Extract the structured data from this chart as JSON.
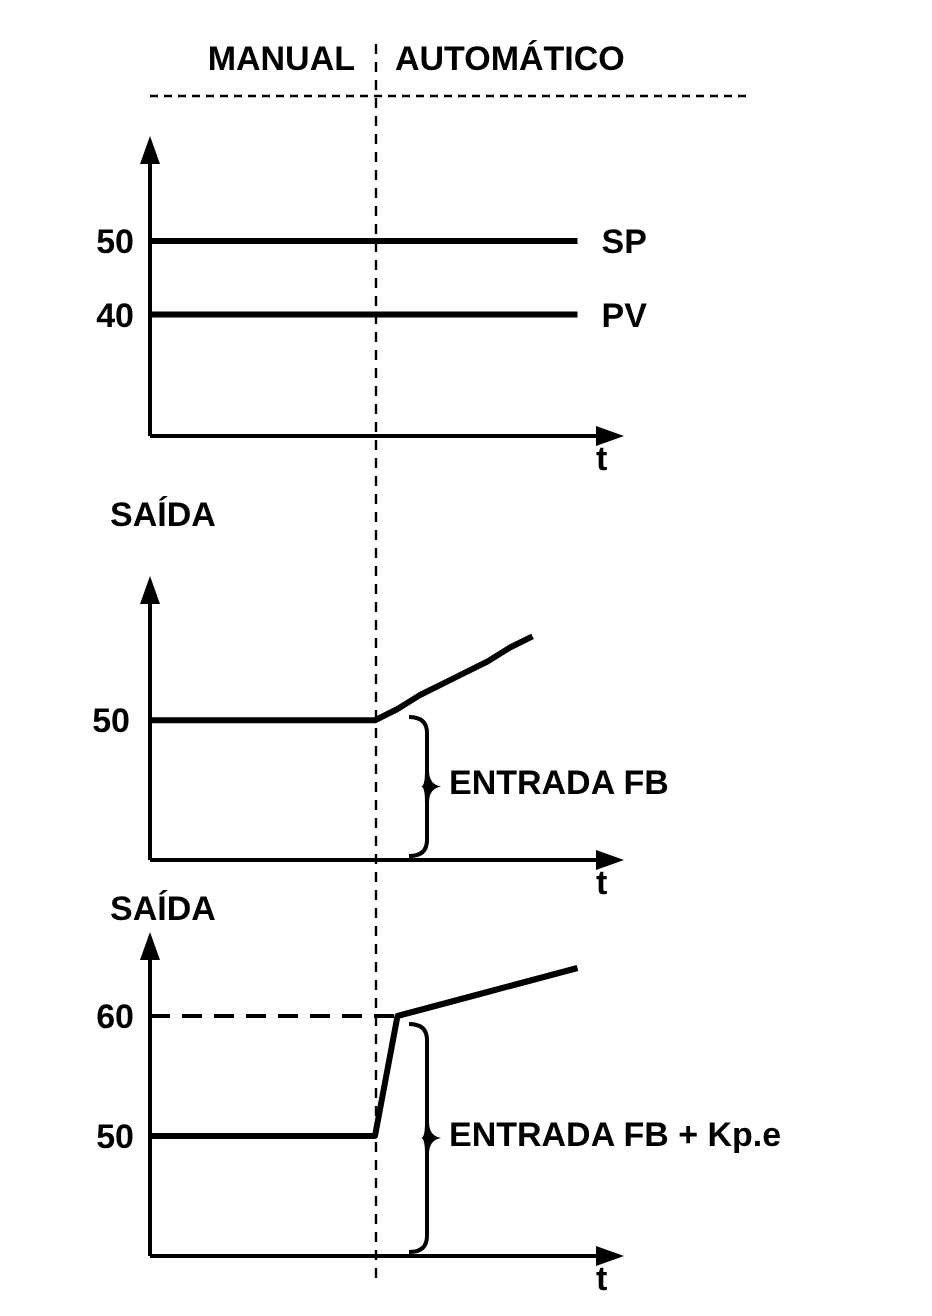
{
  "chart_data": [
    {
      "type": "line",
      "annotations": [
        "MANUAL",
        "AUTOMÁTICO"
      ],
      "xlabel": "t",
      "categories": [
        null,
        null,
        null,
        null,
        null,
        null,
        null,
        null,
        null,
        null,
        null,
        null,
        null,
        null,
        null,
        null,
        null,
        null,
        null,
        null,
        null
      ],
      "ylim": [
        23.5,
        61
      ],
      "yticks": [
        40,
        50
      ],
      "tick_labels": "y",
      "marker": "none",
      "line_style": "solid",
      "series": [
        {
          "name": "SP",
          "color": "#000000",
          "values": [
            50,
            50,
            50,
            50,
            50,
            50,
            50,
            50,
            50,
            50,
            50,
            50,
            50,
            50,
            50,
            50,
            50,
            50,
            50,
            50,
            null
          ]
        },
        {
          "name": "PV",
          "color": "#000000",
          "values": [
            40,
            40,
            40,
            40,
            40,
            40,
            40,
            40,
            40,
            40,
            40,
            40,
            40,
            40,
            40,
            40,
            40,
            40,
            40,
            40,
            null
          ]
        }
      ]
    },
    {
      "type": "line",
      "ylabel": "SAÍDA",
      "xlabel": "t",
      "annotations": [
        "ENTRADA FB"
      ],
      "ylim": [
        0,
        93
      ],
      "categories": [
        null,
        null,
        null,
        null,
        null,
        null,
        null,
        null,
        null,
        null,
        null,
        null,
        null,
        null,
        null,
        null,
        null,
        null,
        null,
        null,
        null
      ],
      "tick_labels": false,
      "marker": "none",
      "line_style": "solid",
      "series": [
        {
          "color": "#000000",
          "values": [
            50,
            50,
            50,
            50,
            50,
            50,
            50,
            50,
            50,
            50,
            50,
            54,
            59,
            63,
            67,
            71,
            76,
            80,
            null,
            null,
            null
          ],
          "value_labels": [
            "50",
            null,
            null,
            null,
            null,
            null,
            null,
            null,
            null,
            null,
            null,
            null,
            null,
            null,
            null,
            null,
            null,
            null,
            null,
            null,
            null
          ]
        }
      ]
    },
    {
      "type": "line",
      "ylabel": "SAÍDA",
      "xlabel": "t",
      "annotations": [
        "ENTRADA FB + Kp.e"
      ],
      "categories": [
        null,
        null,
        null,
        null,
        null,
        null,
        null,
        null,
        null,
        null,
        null,
        null,
        null,
        null,
        null,
        null,
        null,
        null,
        null,
        null,
        null
      ],
      "ylim": [
        40,
        65
      ],
      "yticks": [
        50,
        60
      ],
      "tick_labels": "y",
      "marker": "none",
      "line_style": "solid",
      "ref_lines": [
        {
          "axis": "y",
          "value": 60,
          "line_style": "dashed"
        }
      ],
      "series": [
        {
          "color": "#000000",
          "values": [
            50,
            50,
            50,
            50,
            50,
            50,
            50,
            50,
            50,
            50,
            50,
            60,
            60.5,
            61,
            61.5,
            62,
            62.5,
            63,
            63.5,
            64,
            null
          ]
        }
      ]
    }
  ]
}
